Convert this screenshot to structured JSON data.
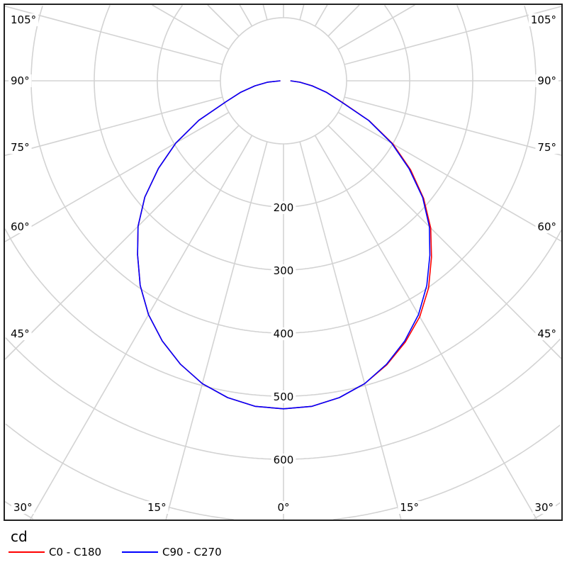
{
  "chart_data": {
    "type": "polar-line",
    "unit_label": "cd",
    "radial_ticks": [
      200,
      300,
      400,
      500,
      600
    ],
    "radial_grid": [
      100,
      200,
      300,
      400,
      500,
      600,
      700,
      800
    ],
    "angle_grid_step_deg": 15,
    "angle_labels_left": [
      "105°",
      "90°",
      "75°",
      "60°",
      "45°",
      "30°",
      "15°"
    ],
    "angle_labels_bottom": "0°",
    "angle_labels_right": [
      "15°",
      "30°",
      "45°",
      "60°",
      "75°",
      "90°",
      "105°"
    ],
    "grid": true,
    "legend_position": "bottom-left",
    "gamma": [
      0,
      5,
      10,
      15,
      20,
      25,
      30,
      35,
      40,
      45,
      50,
      55,
      60,
      65,
      70,
      75,
      80,
      85,
      90
    ],
    "series": [
      {
        "name": "C0 - C180",
        "color": "#ff0000",
        "right_half": [
          520,
          518,
          510,
          497,
          479,
          457,
          432,
          401,
          365,
          330,
          290,
          246,
          200,
          150,
          98,
          71,
          47,
          27,
          11
        ],
        "left_half": [
          520,
          518,
          510,
          497,
          478,
          455,
          428,
          396,
          360,
          326,
          287,
          242,
          197,
          148,
          97,
          70,
          46,
          25,
          5
        ]
      },
      {
        "name": "C90 - C270",
        "color": "#0000ff",
        "right_half": [
          520,
          518,
          510,
          497,
          478,
          455,
          428,
          396,
          361,
          327,
          288,
          243,
          198,
          149,
          97,
          70,
          46,
          26,
          11
        ],
        "left_half": [
          520,
          518,
          510,
          497,
          478,
          455,
          428,
          396,
          360,
          326,
          287,
          242,
          197,
          148,
          97,
          70,
          46,
          25,
          5
        ]
      }
    ]
  }
}
